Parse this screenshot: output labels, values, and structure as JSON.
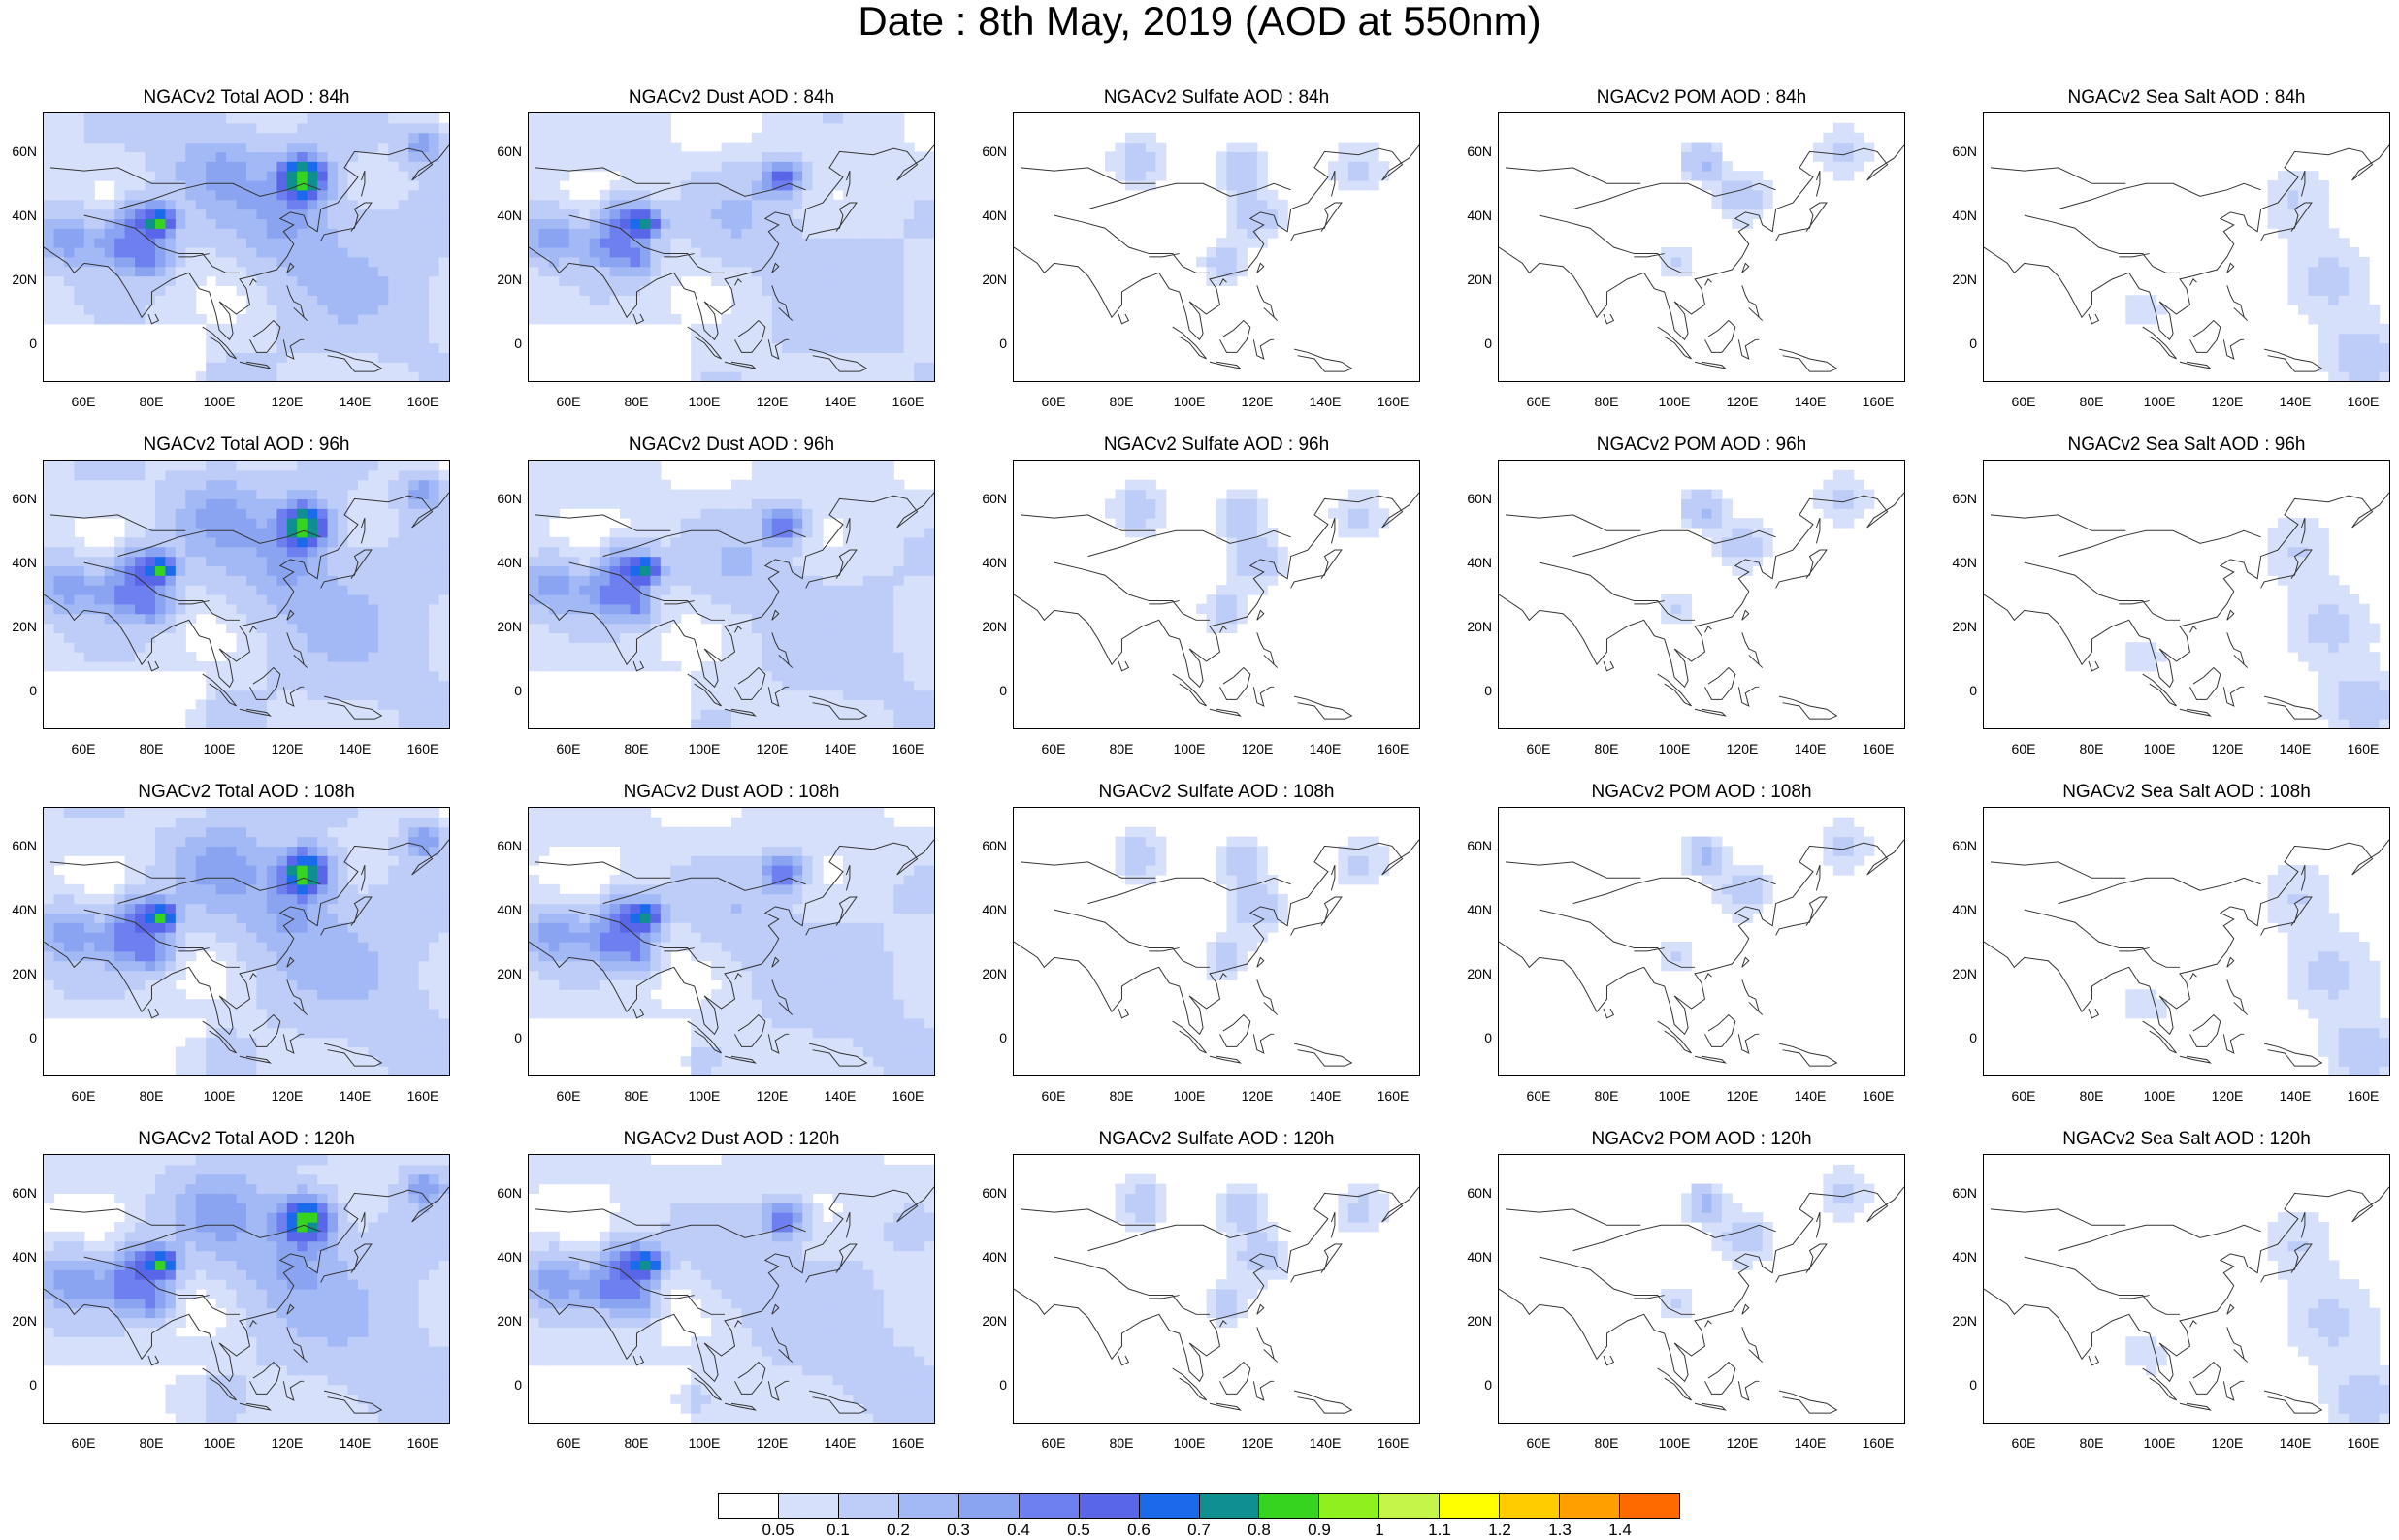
{
  "title": "Date : 8th May, 2019 (AOD at 550nm)",
  "lat_ticks": [
    "60N",
    "40N",
    "20N",
    "0"
  ],
  "lon_ticks": [
    "60E",
    "80E",
    "100E",
    "120E",
    "140E",
    "160E"
  ],
  "panels": [
    [
      {
        "title": "NGACv2 Total AOD : 84h",
        "field": "total",
        "lead": 84
      },
      {
        "title": "NGACv2 Dust AOD : 84h",
        "field": "dust",
        "lead": 84
      },
      {
        "title": "NGACv2 Sulfate AOD : 84h",
        "field": "sulfate",
        "lead": 84
      },
      {
        "title": "NGACv2 POM AOD : 84h",
        "field": "pom",
        "lead": 84
      },
      {
        "title": "NGACv2 Sea Salt AOD : 84h",
        "field": "seasalt",
        "lead": 84
      }
    ],
    [
      {
        "title": "NGACv2 Total AOD : 96h",
        "field": "total",
        "lead": 96
      },
      {
        "title": "NGACv2 Dust AOD : 96h",
        "field": "dust",
        "lead": 96
      },
      {
        "title": "NGACv2 Sulfate AOD : 96h",
        "field": "sulfate",
        "lead": 96
      },
      {
        "title": "NGACv2 POM AOD : 96h",
        "field": "pom",
        "lead": 96
      },
      {
        "title": "NGACv2 Sea Salt AOD : 96h",
        "field": "seasalt",
        "lead": 96
      }
    ],
    [
      {
        "title": "NGACv2 Total AOD : 108h",
        "field": "total",
        "lead": 108
      },
      {
        "title": "NGACv2 Dust AOD : 108h",
        "field": "dust",
        "lead": 108
      },
      {
        "title": "NGACv2 Sulfate AOD : 108h",
        "field": "sulfate",
        "lead": 108
      },
      {
        "title": "NGACv2 POM AOD : 108h",
        "field": "pom",
        "lead": 108
      },
      {
        "title": "NGACv2 Sea Salt AOD : 108h",
        "field": "seasalt",
        "lead": 108
      }
    ],
    [
      {
        "title": "NGACv2 Total AOD : 120h",
        "field": "total",
        "lead": 120
      },
      {
        "title": "NGACv2 Dust AOD : 120h",
        "field": "dust",
        "lead": 120
      },
      {
        "title": "NGACv2 Sulfate AOD : 120h",
        "field": "sulfate",
        "lead": 120
      },
      {
        "title": "NGACv2 POM AOD : 120h",
        "field": "pom",
        "lead": 120
      },
      {
        "title": "NGACv2 Sea Salt  AOD : 120h",
        "field": "seasalt",
        "lead": 120
      }
    ]
  ],
  "colorbar": {
    "levels": [
      "0.05",
      "0.1",
      "0.2",
      "0.3",
      "0.4",
      "0.5",
      "0.6",
      "0.7",
      "0.8",
      "0.9",
      "1",
      "1.1",
      "1.2",
      "1.3",
      "1.4"
    ],
    "colors": [
      "#ffffff",
      "#d6e0fb",
      "#bdcdf8",
      "#a3b9f5",
      "#8aa4f2",
      "#6e7ff0",
      "#5a66e8",
      "#1a6aeb",
      "#0f8f8f",
      "#36d41e",
      "#8ef01e",
      "#c6f54a",
      "#ffff00",
      "#ffcc00",
      "#ffa000",
      "#ff6a00",
      "#ff1a00"
    ]
  }
}
